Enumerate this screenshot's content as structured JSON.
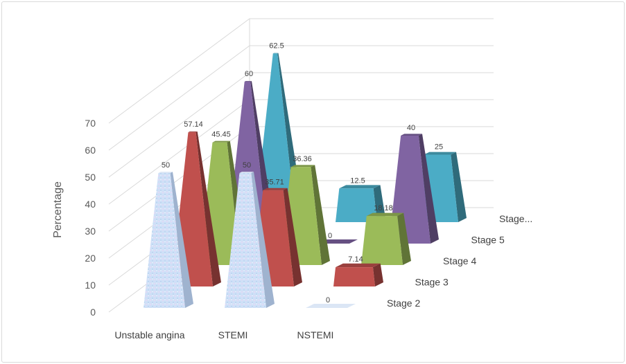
{
  "chart_data": {
    "type": "bar",
    "subtype": "3d-pyramid",
    "title": "",
    "xlabel": "",
    "ylabel": "Percentage",
    "ylim": [
      0,
      70
    ],
    "yticks": [
      0,
      10,
      20,
      30,
      40,
      50,
      60,
      70
    ],
    "grid": true,
    "legend": "series labels on depth axis (right)",
    "categories": [
      "Unstable angina",
      "STEMI",
      "NSTEMI"
    ],
    "series": [
      {
        "name": "Stage 2",
        "values": [
          50,
          50,
          0
        ],
        "color": "#c6dbf5"
      },
      {
        "name": "Stage 3",
        "values": [
          57.14,
          35.71,
          7.14
        ],
        "color": "#c0504d"
      },
      {
        "name": "Stage 4",
        "values": [
          45.45,
          36.36,
          18.18
        ],
        "color": "#9bbb59"
      },
      {
        "name": "Stage 5",
        "values": [
          60,
          0,
          40
        ],
        "color": "#8064a2"
      },
      {
        "name": "Stage...",
        "values": [
          62.5,
          12.5,
          25
        ],
        "color": "#4bacc6"
      }
    ]
  }
}
